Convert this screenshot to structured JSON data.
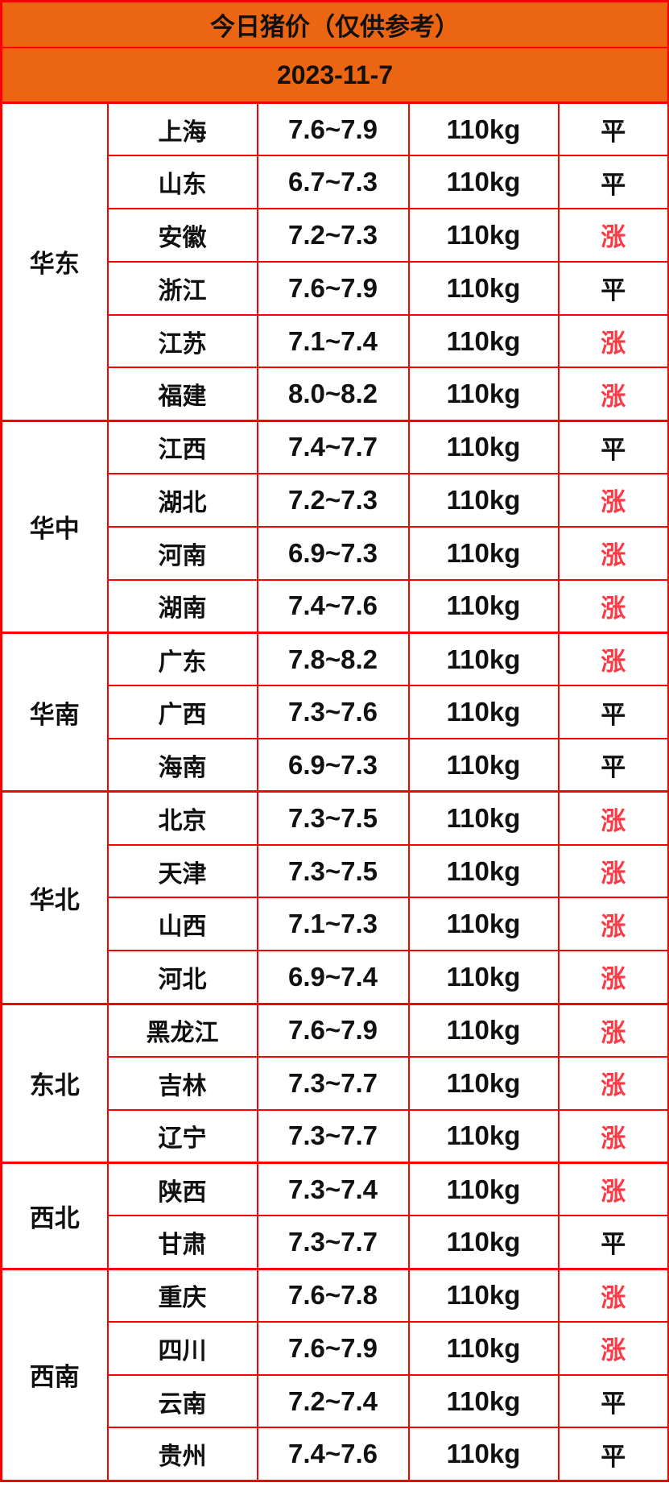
{
  "header": {
    "title": "今日猪价（仅供参考）",
    "date": "2023-11-7"
  },
  "colors": {
    "header_bg": "#EC6512",
    "border_red": "#FF0000",
    "text_black": "#111111"
  },
  "trend_colors": {
    "涨": "#FA3A44",
    "平": "#111111"
  },
  "table": {
    "regions": [
      {
        "name": "华东",
        "rows": [
          {
            "province": "上海",
            "price": "7.6~7.9",
            "weight": "110kg",
            "trend": "平"
          },
          {
            "province": "山东",
            "price": "6.7~7.3",
            "weight": "110kg",
            "trend": "平"
          },
          {
            "province": "安徽",
            "price": "7.2~7.3",
            "weight": "110kg",
            "trend": "涨"
          },
          {
            "province": "浙江",
            "price": "7.6~7.9",
            "weight": "110kg",
            "trend": "平"
          },
          {
            "province": "江苏",
            "price": "7.1~7.4",
            "weight": "110kg",
            "trend": "涨"
          },
          {
            "province": "福建",
            "price": "8.0~8.2",
            "weight": "110kg",
            "trend": "涨"
          }
        ]
      },
      {
        "name": "华中",
        "rows": [
          {
            "province": "江西",
            "price": "7.4~7.7",
            "weight": "110kg",
            "trend": "平"
          },
          {
            "province": "湖北",
            "price": "7.2~7.3",
            "weight": "110kg",
            "trend": "涨"
          },
          {
            "province": "河南",
            "price": "6.9~7.3",
            "weight": "110kg",
            "trend": "涨"
          },
          {
            "province": "湖南",
            "price": "7.4~7.6",
            "weight": "110kg",
            "trend": "涨"
          }
        ]
      },
      {
        "name": "华南",
        "rows": [
          {
            "province": "广东",
            "price": "7.8~8.2",
            "weight": "110kg",
            "trend": "涨"
          },
          {
            "province": "广西",
            "price": "7.3~7.6",
            "weight": "110kg",
            "trend": "平"
          },
          {
            "province": "海南",
            "price": "6.9~7.3",
            "weight": "110kg",
            "trend": "平"
          }
        ]
      },
      {
        "name": "华北",
        "rows": [
          {
            "province": "北京",
            "price": "7.3~7.5",
            "weight": "110kg",
            "trend": "涨"
          },
          {
            "province": "天津",
            "price": "7.3~7.5",
            "weight": "110kg",
            "trend": "涨"
          },
          {
            "province": "山西",
            "price": "7.1~7.3",
            "weight": "110kg",
            "trend": "涨"
          },
          {
            "province": "河北",
            "price": "6.9~7.4",
            "weight": "110kg",
            "trend": "涨"
          }
        ]
      },
      {
        "name": "东北",
        "rows": [
          {
            "province": "黑龙江",
            "price": "7.6~7.9",
            "weight": "110kg",
            "trend": "涨"
          },
          {
            "province": "吉林",
            "price": "7.3~7.7",
            "weight": "110kg",
            "trend": "涨"
          },
          {
            "province": "辽宁",
            "price": "7.3~7.7",
            "weight": "110kg",
            "trend": "涨"
          }
        ]
      },
      {
        "name": "西北",
        "rows": [
          {
            "province": "陕西",
            "price": "7.3~7.4",
            "weight": "110kg",
            "trend": "涨"
          },
          {
            "province": "甘肃",
            "price": "7.3~7.7",
            "weight": "110kg",
            "trend": "平"
          }
        ]
      },
      {
        "name": "西南",
        "rows": [
          {
            "province": "重庆",
            "price": "7.6~7.8",
            "weight": "110kg",
            "trend": "涨"
          },
          {
            "province": "四川",
            "price": "7.6~7.9",
            "weight": "110kg",
            "trend": "涨"
          },
          {
            "province": "云南",
            "price": "7.2~7.4",
            "weight": "110kg",
            "trend": "平"
          },
          {
            "province": "贵州",
            "price": "7.4~7.6",
            "weight": "110kg",
            "trend": "平"
          }
        ]
      }
    ]
  }
}
